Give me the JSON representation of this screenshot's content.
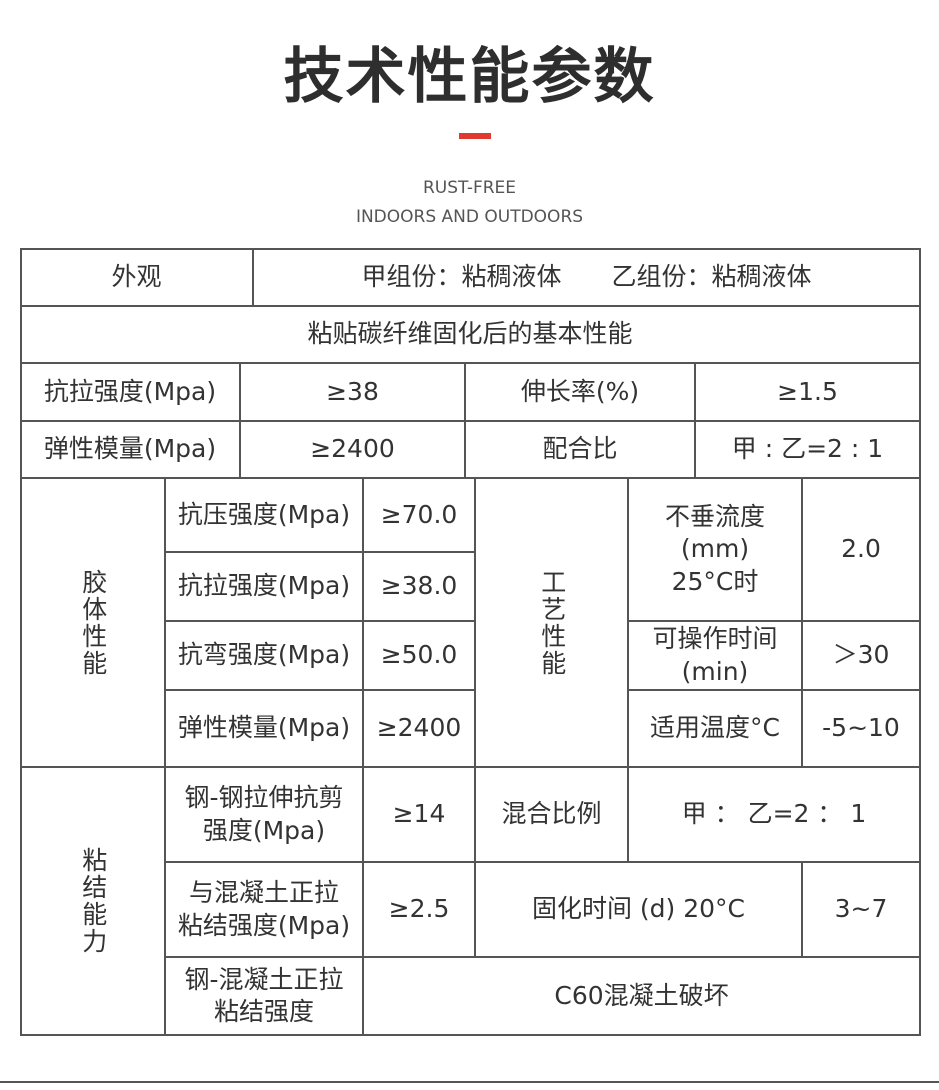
{
  "header": {
    "title": "技术性能参数",
    "subtitle_lines": [
      "RUST-FREE",
      "INDOORS AND OUTDOORS"
    ]
  },
  "table": {
    "cells": [
      "外观",
      "甲组份：粘稠液体　　乙组份：粘稠液体",
      "粘贴碳纤维固化后的基本性能",
      "抗拉强度(Mpa)",
      "≥38",
      "伸长率(%)",
      "≥1.5",
      "弹性模量(Mpa)",
      "≥2400",
      "配合比",
      "甲 : 乙=2 : 1",
      "胶体性能",
      "抗压强度(Mpa)",
      "≥70.0",
      "抗拉强度(Mpa)",
      "≥38.0",
      "抗弯强度(Mpa)",
      "≥50.0",
      "弹性模量(Mpa)",
      "≥2400",
      "工艺性能",
      "不垂流度\n(mm)\n25°C时",
      "2.0",
      "可操作时间\n(min)",
      "＞30",
      "适用温度°C",
      "-5~10",
      "粘结能力",
      "钢-钢拉伸抗剪\n强度(Mpa)",
      "≥14",
      "混合比例",
      "甲 ： 乙=2 ： 1",
      "与混凝土正拉\n粘结强度(Mpa)",
      "≥2.5",
      "固化时间 (d) 20°C",
      "3~7",
      "钢-混凝土正拉\n粘结强度",
      "C60混凝土破坏"
    ]
  }
}
